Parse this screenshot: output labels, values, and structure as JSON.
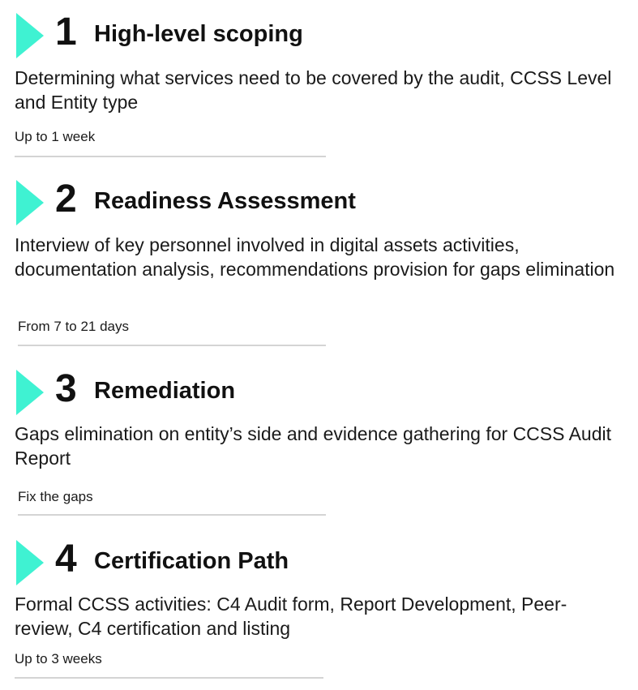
{
  "colors": {
    "accent": "#3FF2D2",
    "divider": "#D4D4D4",
    "text": "#111111"
  },
  "steps": [
    {
      "number": "1",
      "title": "High-level scoping",
      "description": "Determining what services need to be covered by the audit, CCSS Level and Entity type",
      "duration": "Up to 1 week",
      "icon": "play-triangle-icon"
    },
    {
      "number": "2",
      "title": "Readiness Assessment",
      "description": "Interview of key personnel involved in digital assets activities, documentation analysis, recommendations provision for gaps elimination",
      "duration": "From 7 to 21 days",
      "icon": "play-triangle-icon"
    },
    {
      "number": "3",
      "title": "Remediation",
      "description": "Gaps elimination on entity’s side and evidence gathering for CCSS Audit Report",
      "duration": "Fix the gaps",
      "icon": "play-triangle-icon"
    },
    {
      "number": "4",
      "title": "Certification Path",
      "description": "Formal CCSS activities: C4 Audit form, Report Development, Peer-review, C4 certification and listing",
      "duration": "Up to 3 weeks",
      "icon": "play-triangle-icon"
    }
  ]
}
